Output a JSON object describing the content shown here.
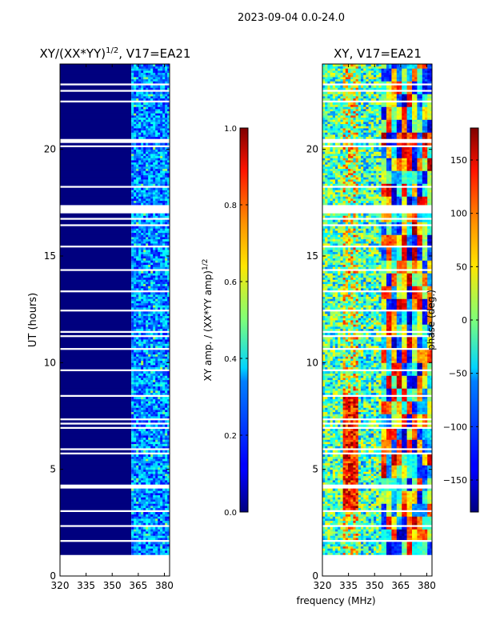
{
  "suptitle": "2023-09-04 0.0-24.0",
  "colors": {
    "blank_row": "#ffffff",
    "low_band": "#00007f",
    "axis": "#000000"
  },
  "chart_data": [
    {
      "type": "heatmap",
      "title_text": "XY/(XX*YY)",
      "title_exponent": "1/2",
      "title_suffix": ", V17=EA21",
      "xlabel": "",
      "ylabel": "UT (hours)",
      "xlim": [
        320,
        383
      ],
      "ylim": [
        0,
        24
      ],
      "xticks": [
        "320",
        "335",
        "350",
        "365",
        "380"
      ],
      "xtick_values": [
        320,
        335,
        350,
        365,
        380
      ],
      "yticks": [
        "0",
        "5",
        "10",
        "15",
        "20"
      ],
      "ytick_values": [
        0,
        5,
        10,
        15,
        20
      ],
      "data_extent_hours": [
        1.0,
        24.0
      ],
      "features": [
        {
          "band_mhz": [
            320,
            361
          ],
          "level": 0.0,
          "description": "near-zero amplitude"
        },
        {
          "band_mhz": [
            361,
            383
          ],
          "level": 0.25,
          "description": "weak correlated amplitude stripes"
        }
      ],
      "colorbar": {
        "label": "XY amp. / (XX*YY amp)",
        "label_exponent": "1/2",
        "range": [
          0.0,
          1.0
        ],
        "ticks": [
          "0.0",
          "0.2",
          "0.4",
          "0.6",
          "0.8",
          "1.0"
        ],
        "tick_values": [
          0.0,
          0.2,
          0.4,
          0.6,
          0.8,
          1.0
        ]
      }
    },
    {
      "type": "heatmap",
      "title": "XY, V17=EA21",
      "xlabel": "frequency (MHz)",
      "ylabel": "",
      "xlim": [
        320,
        383
      ],
      "ylim": [
        0,
        24
      ],
      "xticks": [
        "320",
        "335",
        "350",
        "365",
        "380"
      ],
      "xtick_values": [
        320,
        335,
        350,
        365,
        380
      ],
      "yticks": [
        "0",
        "5",
        "10",
        "15",
        "20"
      ],
      "ytick_values": [
        0,
        5,
        10,
        15,
        20
      ],
      "data_extent_hours": [
        1.0,
        24.0
      ],
      "features": [
        {
          "band_mhz": [
            320,
            331
          ],
          "level": "mixed phase"
        },
        {
          "band_mhz": [
            331,
            340
          ],
          "level": "phase near +180 (hours 3-8)"
        },
        {
          "band_mhz": [
            340,
            353
          ],
          "level": "mixed phase"
        },
        {
          "band_mhz": [
            353,
            383
          ],
          "level": "blocky phase, -150 to +150"
        }
      ],
      "colorbar": {
        "label": "phase (deg.)",
        "range": [
          -180,
          180
        ],
        "ticks": [
          "−150",
          "−100",
          "−50",
          "0",
          "50",
          "100",
          "150"
        ],
        "tick_values": [
          -150,
          -100,
          -50,
          0,
          50,
          100,
          150
        ]
      }
    }
  ]
}
